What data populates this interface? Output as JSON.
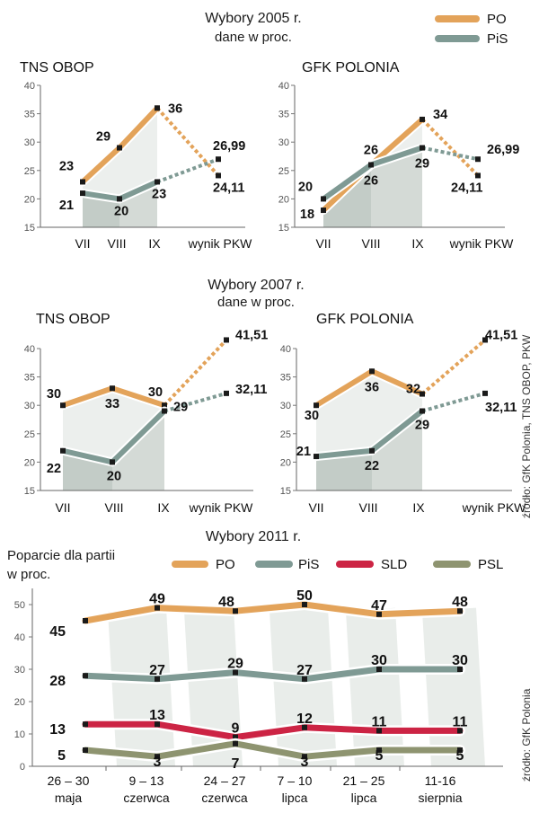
{
  "colors": {
    "PO": "#E3A35A",
    "PiS": "#7F9A94",
    "SLD": "#CC2444",
    "PSL": "#8E9470",
    "marker": "#1a1a1a"
  },
  "sections": [
    {
      "title": "Wybory 2005 r.",
      "subtitle": "dane w proc."
    },
    {
      "title": "Wybory 2007 r.",
      "subtitle": "dane w proc."
    },
    {
      "title": "Wybory 2011 r."
    }
  ],
  "legend_top": [
    {
      "key": "PO",
      "label": "PO"
    },
    {
      "key": "PiS",
      "label": "PiS"
    }
  ],
  "legend_2011": [
    {
      "key": "PO",
      "label": "PO"
    },
    {
      "key": "PiS",
      "label": "PiS"
    },
    {
      "key": "SLD",
      "label": "SLD"
    },
    {
      "key": "PSL",
      "label": "PSL"
    }
  ],
  "ylabel_2011": [
    "Poparcie dla partii",
    "w proc."
  ],
  "sources": [
    "źródło: GfK Polonia, TNS OBOP, PKW",
    "źródło: GfK Polonia"
  ],
  "chart_data": [
    {
      "id": "c2005tns",
      "type": "line",
      "title": "TNS OBOP",
      "categories": [
        "VII",
        "VIII",
        "IX",
        "wynik PKW"
      ],
      "ylim": [
        15,
        40
      ],
      "yticks": [
        15,
        20,
        25,
        30,
        35,
        40
      ],
      "series": [
        {
          "name": "PO",
          "values": [
            23,
            29,
            36,
            24.11
          ],
          "labels": [
            "23",
            "29",
            "36",
            "24,11"
          ]
        },
        {
          "name": "PiS",
          "values": [
            21,
            20,
            23,
            26.99
          ],
          "labels": [
            "21",
            "20",
            "23",
            "26,99"
          ]
        }
      ]
    },
    {
      "id": "c2005gfk",
      "type": "line",
      "title": "GFK POLONIA",
      "categories": [
        "VII",
        "VIII",
        "IX",
        "wynik PKW"
      ],
      "ylim": [
        15,
        40
      ],
      "yticks": [
        15,
        20,
        25,
        30,
        35,
        40
      ],
      "series": [
        {
          "name": "PO",
          "values": [
            18,
            26,
            34,
            24.11
          ],
          "labels": [
            "18",
            "26",
            "34",
            "24,11"
          ]
        },
        {
          "name": "PiS",
          "values": [
            20,
            26,
            29,
            26.99
          ],
          "labels": [
            "20",
            "26",
            "29",
            "26,99"
          ]
        }
      ]
    },
    {
      "id": "c2007tns",
      "type": "line",
      "title": "TNS OBOP",
      "categories": [
        "VII",
        "VIII",
        "IX",
        "wynik PKW"
      ],
      "ylim": [
        15,
        40
      ],
      "yticks": [
        15,
        20,
        25,
        30,
        35,
        40
      ],
      "series": [
        {
          "name": "PO",
          "values": [
            30,
            33,
            30,
            41.51
          ],
          "labels": [
            "30",
            "33",
            "30",
            "41,51"
          ]
        },
        {
          "name": "PiS",
          "values": [
            22,
            20,
            29,
            32.11
          ],
          "labels": [
            "22",
            "20",
            "29",
            "32,11"
          ]
        }
      ]
    },
    {
      "id": "c2007gfk",
      "type": "line",
      "title": "GFK POLONIA",
      "categories": [
        "VII",
        "VIII",
        "IX",
        "wynik PKW"
      ],
      "ylim": [
        15,
        40
      ],
      "yticks": [
        15,
        20,
        25,
        30,
        35,
        40
      ],
      "series": [
        {
          "name": "PO",
          "values": [
            30,
            36,
            32,
            41.51
          ],
          "labels": [
            "30",
            "36",
            "32",
            "41,51"
          ]
        },
        {
          "name": "PiS",
          "values": [
            21,
            22,
            29,
            32.11
          ],
          "labels": [
            "21",
            "22",
            "29",
            "32,11"
          ]
        }
      ]
    },
    {
      "id": "c2011",
      "type": "line",
      "title": "",
      "categories": [
        [
          "26 – 30",
          "maja"
        ],
        [
          "9 – 13",
          "czerwca"
        ],
        [
          "24 – 27",
          "czerwca"
        ],
        [
          "7 – 10",
          "lipca"
        ],
        [
          "21 – 25",
          "lipca"
        ],
        [
          "11-16",
          "sierpnia"
        ]
      ],
      "ylim": [
        0,
        55
      ],
      "yticks": [
        0,
        10,
        20,
        30,
        40,
        50
      ],
      "series": [
        {
          "name": "PO",
          "values": [
            45,
            49,
            48,
            50,
            47,
            48
          ]
        },
        {
          "name": "PiS",
          "values": [
            28,
            27,
            29,
            27,
            30,
            30
          ]
        },
        {
          "name": "SLD",
          "values": [
            13,
            13,
            9,
            12,
            11,
            11
          ]
        },
        {
          "name": "PSL",
          "values": [
            5,
            3,
            7,
            3,
            5,
            5
          ]
        }
      ]
    }
  ]
}
